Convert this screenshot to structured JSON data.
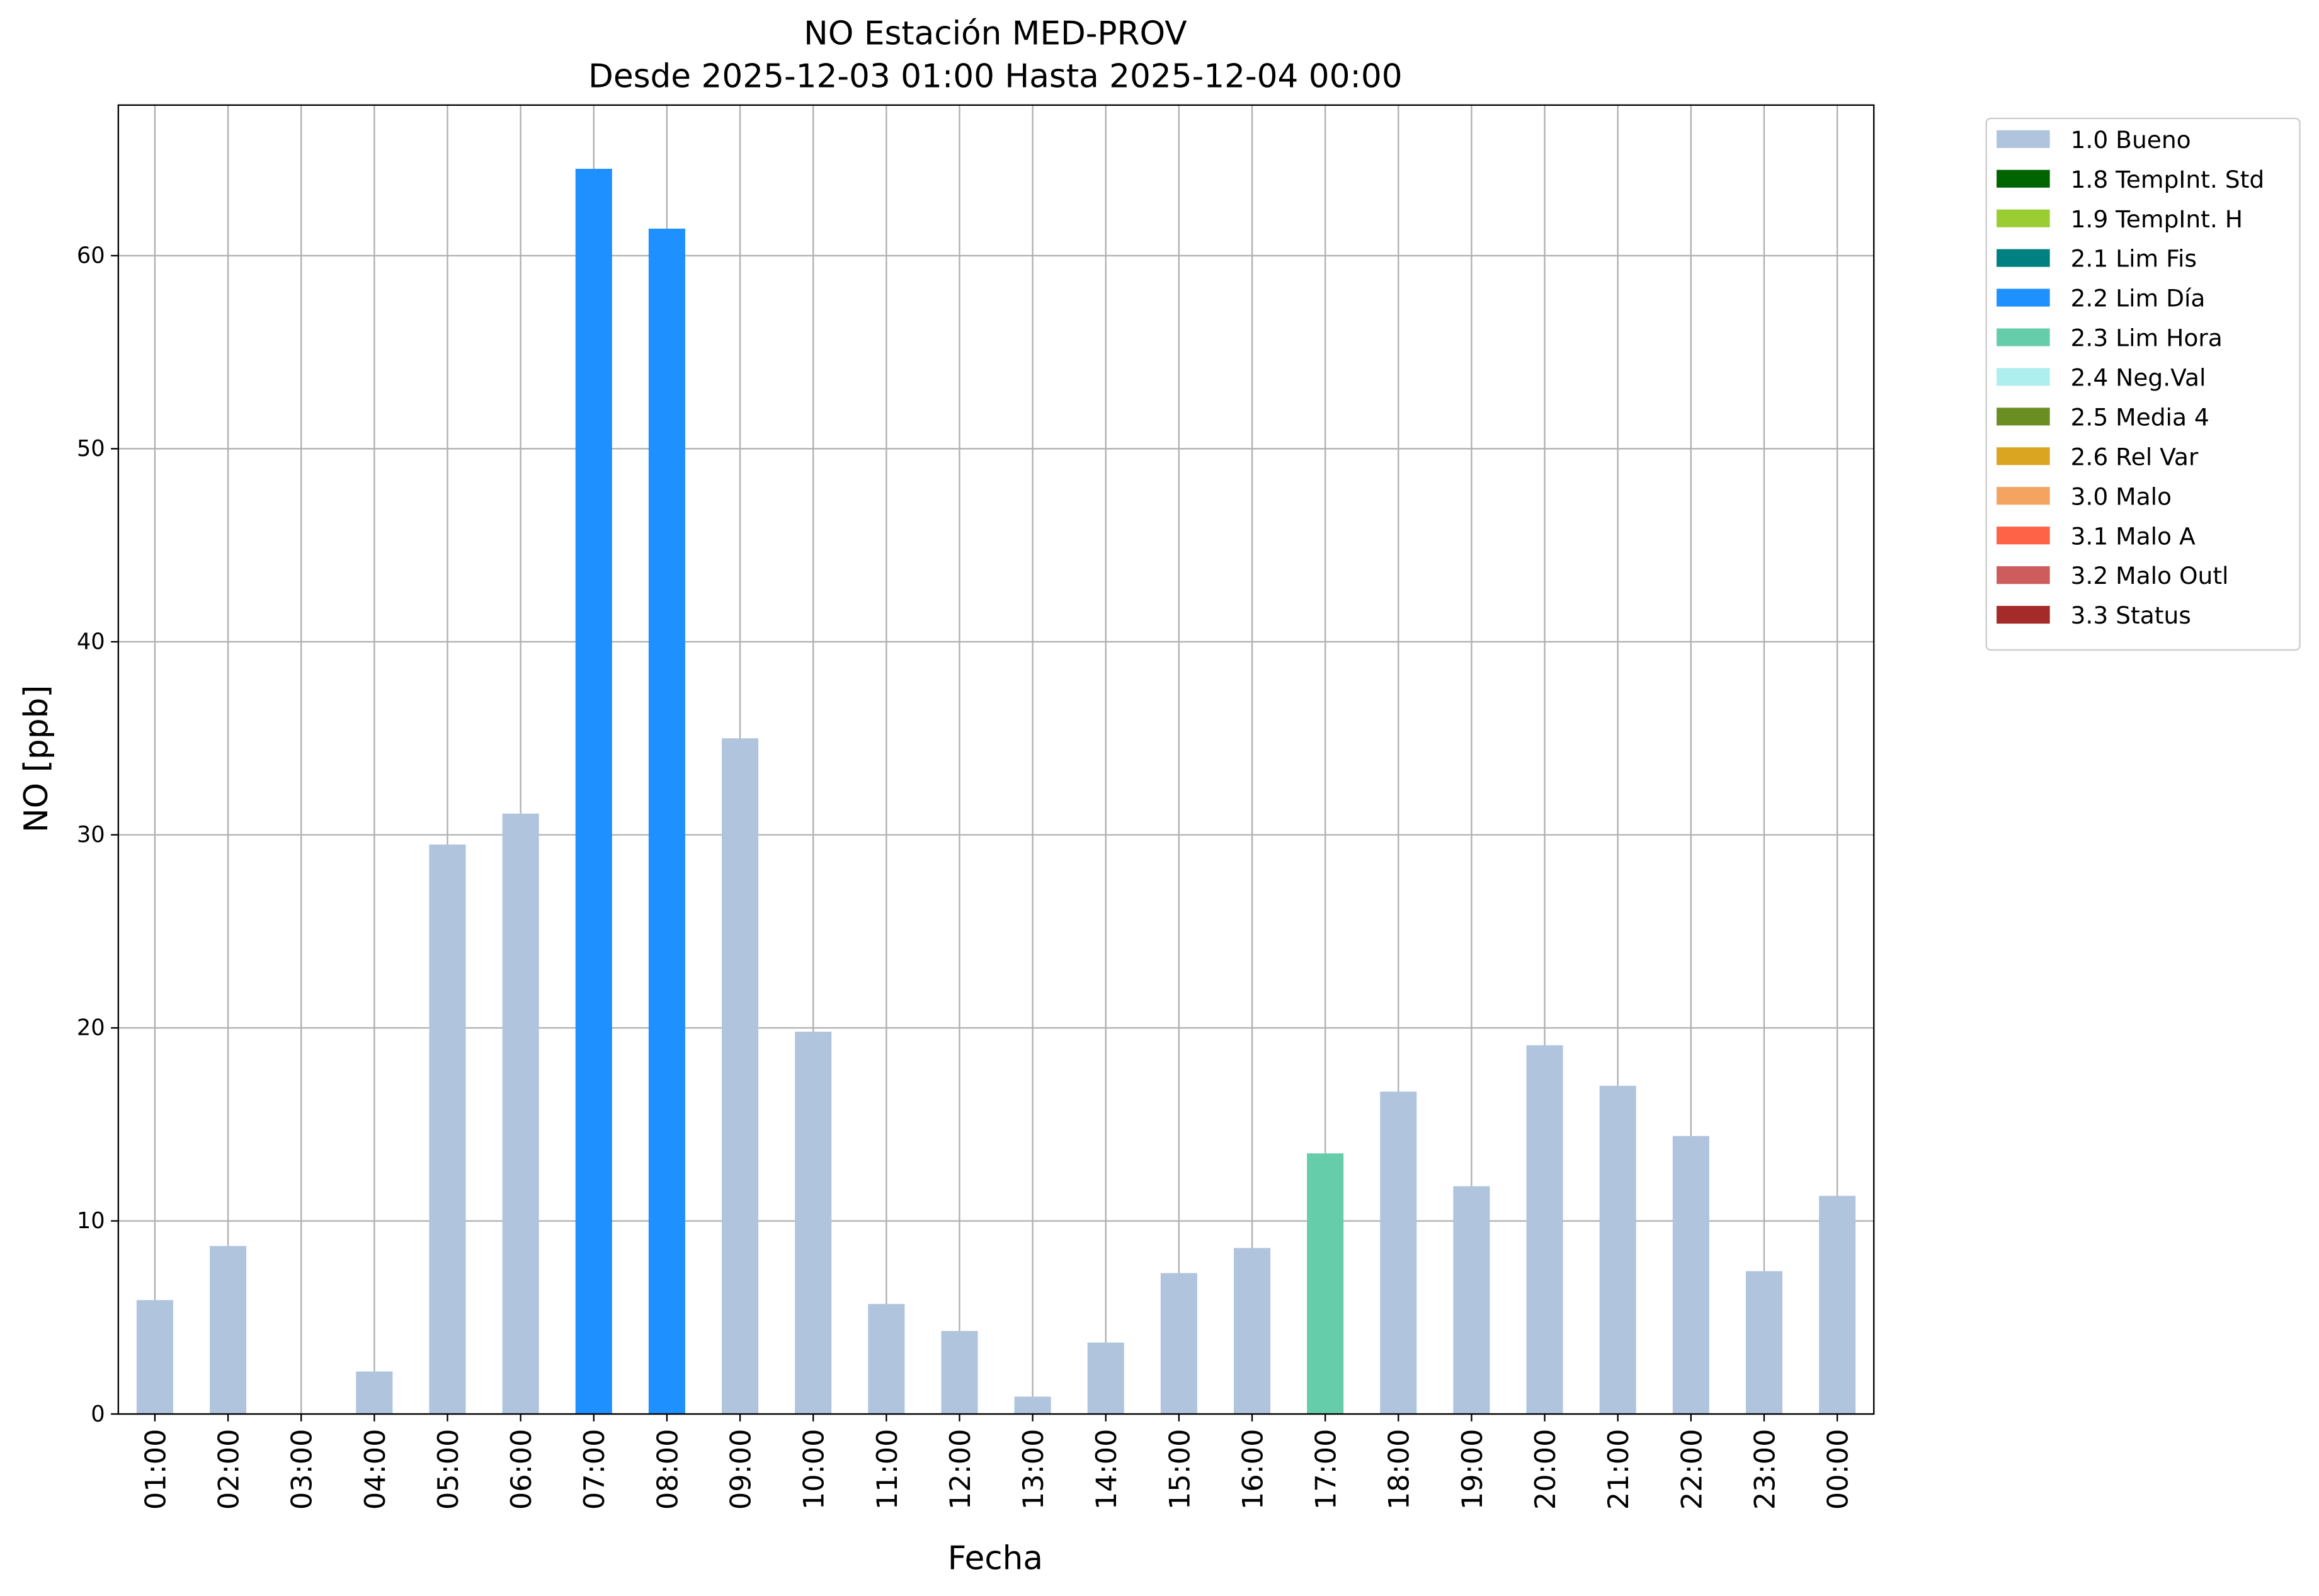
{
  "chart_data": {
    "type": "bar",
    "stacked": true,
    "title": "NO Estación MED-PROV",
    "subtitle": "Desde 2025-12-03 01:00 Hasta 2025-12-04 00:00",
    "x_label": "Fecha",
    "y_label": "NO [ppb]",
    "categories": [
      "01:00",
      "02:00",
      "03:00",
      "04:00",
      "05:00",
      "06:00",
      "07:00",
      "08:00",
      "09:00",
      "10:00",
      "11:00",
      "12:00",
      "13:00",
      "14:00",
      "15:00",
      "16:00",
      "17:00",
      "18:00",
      "19:00",
      "20:00",
      "21:00",
      "22:00",
      "23:00",
      "00:00"
    ],
    "series": [
      {
        "name": "1.0 Bueno",
        "color": "#b0c4de",
        "values": [
          5.9,
          8.7,
          null,
          2.2,
          29.5,
          31.1,
          null,
          null,
          35.0,
          19.8,
          5.7,
          4.3,
          0.9,
          3.7,
          7.3,
          8.6,
          null,
          16.7,
          11.8,
          19.1,
          17.0,
          14.4,
          7.4,
          11.3
        ]
      },
      {
        "name": "1.8 TempInt. Std",
        "color": "#006400",
        "values": [
          null,
          null,
          null,
          null,
          null,
          null,
          null,
          null,
          null,
          null,
          null,
          null,
          null,
          null,
          null,
          null,
          null,
          null,
          null,
          null,
          null,
          null,
          null,
          null
        ]
      },
      {
        "name": "1.9 TempInt. H",
        "color": "#9acd32",
        "values": [
          null,
          null,
          null,
          null,
          null,
          null,
          null,
          null,
          null,
          null,
          null,
          null,
          null,
          null,
          null,
          null,
          null,
          null,
          null,
          null,
          null,
          null,
          null,
          null
        ]
      },
      {
        "name": "2.1 Lim Fis",
        "color": "#008080",
        "values": [
          null,
          null,
          null,
          null,
          null,
          null,
          null,
          null,
          null,
          null,
          null,
          null,
          null,
          null,
          null,
          null,
          null,
          null,
          null,
          null,
          null,
          null,
          null,
          null
        ]
      },
      {
        "name": "2.2 Lim Día",
        "color": "#1e90ff",
        "values": [
          null,
          null,
          null,
          null,
          null,
          null,
          64.5,
          61.4,
          null,
          null,
          null,
          null,
          null,
          null,
          null,
          null,
          null,
          null,
          null,
          null,
          null,
          null,
          null,
          null
        ]
      },
      {
        "name": "2.3 Lim Hora",
        "color": "#66cdaa",
        "values": [
          null,
          null,
          null,
          null,
          null,
          null,
          null,
          null,
          null,
          null,
          null,
          null,
          null,
          null,
          null,
          null,
          13.5,
          null,
          null,
          null,
          null,
          null,
          null,
          null
        ]
      },
      {
        "name": "2.4 Neg.Val",
        "color": "#afeeee",
        "values": [
          null,
          null,
          null,
          null,
          null,
          null,
          null,
          null,
          null,
          null,
          null,
          null,
          null,
          null,
          null,
          null,
          null,
          null,
          null,
          null,
          null,
          null,
          null,
          null
        ]
      },
      {
        "name": "2.5 Media 4",
        "color": "#6b8e23",
        "values": [
          null,
          null,
          null,
          null,
          null,
          null,
          null,
          null,
          null,
          null,
          null,
          null,
          null,
          null,
          null,
          null,
          null,
          null,
          null,
          null,
          null,
          null,
          null,
          null
        ]
      },
      {
        "name": "2.6 Rel Var",
        "color": "#daa520",
        "values": [
          null,
          null,
          null,
          null,
          null,
          null,
          null,
          null,
          null,
          null,
          null,
          null,
          null,
          null,
          null,
          null,
          null,
          null,
          null,
          null,
          null,
          null,
          null,
          null
        ]
      },
      {
        "name": "3.0 Malo",
        "color": "#f4a460",
        "values": [
          null,
          null,
          null,
          null,
          null,
          null,
          null,
          null,
          null,
          null,
          null,
          null,
          null,
          null,
          null,
          null,
          null,
          null,
          null,
          null,
          null,
          null,
          null,
          null
        ]
      },
      {
        "name": "3.1 Malo A",
        "color": "#ff6347",
        "values": [
          null,
          null,
          null,
          null,
          null,
          null,
          null,
          null,
          null,
          null,
          null,
          null,
          null,
          null,
          null,
          null,
          null,
          null,
          null,
          null,
          null,
          null,
          null,
          null
        ]
      },
      {
        "name": "3.2 Malo Outl",
        "color": "#cd5c5c",
        "values": [
          null,
          null,
          null,
          null,
          null,
          null,
          null,
          null,
          null,
          null,
          null,
          null,
          null,
          null,
          null,
          null,
          null,
          null,
          null,
          null,
          null,
          null,
          null,
          null
        ]
      },
      {
        "name": "3.3 Status",
        "color": "#a52a2a",
        "values": [
          null,
          null,
          null,
          null,
          null,
          null,
          null,
          null,
          null,
          null,
          null,
          null,
          null,
          null,
          null,
          null,
          null,
          null,
          null,
          null,
          null,
          null,
          null,
          null
        ]
      }
    ],
    "ylim": [
      0,
      67.8
    ],
    "yticks": [
      0,
      10,
      20,
      30,
      40,
      50,
      60
    ],
    "grid": true,
    "legend": "outside-right"
  }
}
